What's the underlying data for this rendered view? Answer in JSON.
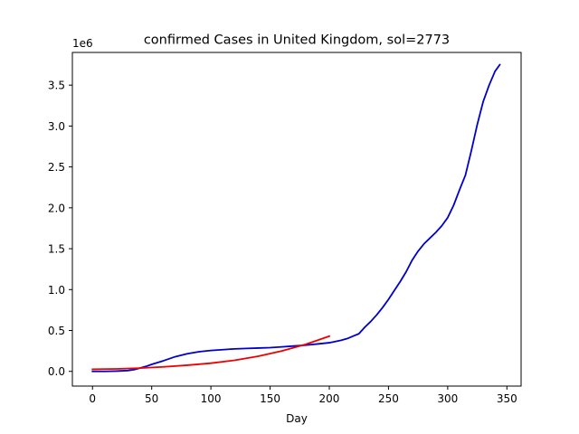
{
  "chart_data": {
    "type": "line",
    "title": "confirmed Cases in United Kingdom, sol=2773",
    "xlabel": "Day",
    "ylabel": "",
    "y_offset_label": "1e6",
    "xlim": [
      -17,
      362
    ],
    "ylim": [
      -0.18,
      3.9
    ],
    "x_ticks": [
      0,
      50,
      100,
      150,
      200,
      250,
      300,
      350
    ],
    "x_tick_labels": [
      "0",
      "50",
      "100",
      "150",
      "200",
      "250",
      "300",
      "350"
    ],
    "y_ticks": [
      0,
      0.5,
      1.0,
      1.5,
      2.0,
      2.5,
      3.0,
      3.5
    ],
    "y_tick_labels": [
      "0.0",
      "0.5",
      "1.0",
      "1.5",
      "2.0",
      "2.5",
      "3.0",
      "3.5"
    ],
    "grid": false,
    "series": [
      {
        "color": "#0000cc",
        "x": [
          0,
          10,
          20,
          30,
          35,
          40,
          45,
          50,
          60,
          70,
          80,
          90,
          100,
          110,
          120,
          130,
          140,
          150,
          160,
          170,
          180,
          190,
          200,
          210,
          215,
          220,
          225,
          230,
          235,
          240,
          245,
          250,
          255,
          260,
          265,
          270,
          275,
          280,
          285,
          290,
          295,
          300,
          305,
          310,
          315,
          320,
          325,
          330,
          335,
          340,
          344
        ],
        "y": [
          0.0,
          0.0,
          0.003,
          0.01,
          0.02,
          0.04,
          0.06,
          0.085,
          0.13,
          0.18,
          0.215,
          0.24,
          0.255,
          0.265,
          0.275,
          0.28,
          0.285,
          0.29,
          0.3,
          0.31,
          0.32,
          0.335,
          0.35,
          0.38,
          0.4,
          0.43,
          0.46,
          0.54,
          0.61,
          0.69,
          0.78,
          0.88,
          0.99,
          1.1,
          1.22,
          1.36,
          1.47,
          1.56,
          1.63,
          1.7,
          1.78,
          1.88,
          2.03,
          2.22,
          2.4,
          2.7,
          3.02,
          3.3,
          3.5,
          3.67,
          3.75
        ]
      },
      {
        "color": "#ee0000",
        "x": [
          0,
          20,
          40,
          60,
          80,
          100,
          120,
          140,
          160,
          180,
          190,
          200
        ],
        "y": [
          0.025,
          0.03,
          0.04,
          0.055,
          0.075,
          0.1,
          0.135,
          0.185,
          0.25,
          0.33,
          0.38,
          0.43
        ]
      }
    ]
  }
}
